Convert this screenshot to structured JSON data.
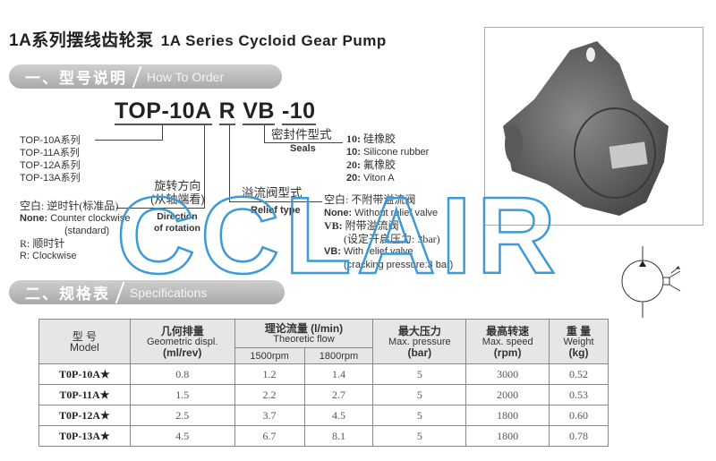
{
  "title": {
    "cn": "1A系列摆线齿轮泵",
    "en": "1A Series Cycloid Gear Pump"
  },
  "section_order": {
    "cn": "一、型号说明",
    "en": "How To Order"
  },
  "section_spec": {
    "cn": "二、规格表",
    "en": "Specifications"
  },
  "model_code": {
    "series": "TOP-10A",
    "rotation": "R",
    "relief": "VB",
    "seal": "-10"
  },
  "series_list": [
    "TOP-10A系列",
    "TOP-11A系列",
    "TOP-12A系列",
    "TOP-13A系列"
  ],
  "rotation": {
    "label_cn": "旋转方向",
    "label_cn2": "(从轴端看)",
    "label_en": "Direction",
    "label_en2": "of rotation",
    "opt1_cn": "空白: 逆时针(标准品)",
    "opt1_en_key": "None:",
    "opt1_en": " Counter clockwise",
    "opt1_en2": "(standard)",
    "opt2_cn": "R: 顺时针",
    "opt2_en": "R: Clockwise"
  },
  "relief": {
    "label_cn": "溢流阀型式",
    "label_en": "Relief type",
    "opt1_cn": "空白: 不附带溢流阀",
    "opt1_en_key": "None:",
    "opt1_en": " Without relief valve",
    "opt2_cn_key": "VB:",
    "opt2_cn": " 附带溢流阀",
    "opt2_cn2": "(设定开启压力: 3bar)",
    "opt2_en_key": "VB:",
    "opt2_en": " With relief valve",
    "opt2_en2": "(cracking pressure:3 bar)"
  },
  "seals": {
    "label_cn": "密封件型式",
    "label_en": "Seals",
    "options": [
      {
        "key": "10:",
        "text": " 硅橡胶"
      },
      {
        "key": "10:",
        "text": " Silicone rubber"
      },
      {
        "key": "20:",
        "text": " 氟橡胶"
      },
      {
        "key": "20:",
        "text": "  Viton A"
      }
    ]
  },
  "table": {
    "headers": {
      "model_cn": "型 号",
      "model_en": "Model",
      "displ_cn": "几何排量",
      "displ_en": "Geometric displ.",
      "displ_unit": "(ml/rev)",
      "flow_cn": "理论流量 (l/min)",
      "flow_en": "Theoretic flow",
      "flow_1500": "1500rpm",
      "flow_1800": "1800rpm",
      "press_cn": "最大压力",
      "press_en": "Max. pressure",
      "press_unit": "(bar)",
      "speed_cn": "最高转速",
      "speed_en": "Max. speed",
      "speed_unit": "(rpm)",
      "weight_cn": "重 量",
      "weight_en": "Weight",
      "weight_unit": "(kg)"
    },
    "rows": [
      [
        "T0P-10A★",
        "0.8",
        "1.2",
        "1.4",
        "5",
        "3000",
        "0.52"
      ],
      [
        "T0P-11A★",
        "1.5",
        "2.2",
        "2.7",
        "5",
        "2000",
        "0.53"
      ],
      [
        "T0P-12A★",
        "2.5",
        "3.7",
        "4.5",
        "5",
        "1800",
        "0.60"
      ],
      [
        "T0P-13A★",
        "4.5",
        "6.7",
        "8.1",
        "5",
        "1800",
        "0.78"
      ]
    ]
  },
  "watermark": "CCLAIR",
  "colors": {
    "watermark": "#3d9ad8",
    "bar": "#b5b5b5"
  }
}
